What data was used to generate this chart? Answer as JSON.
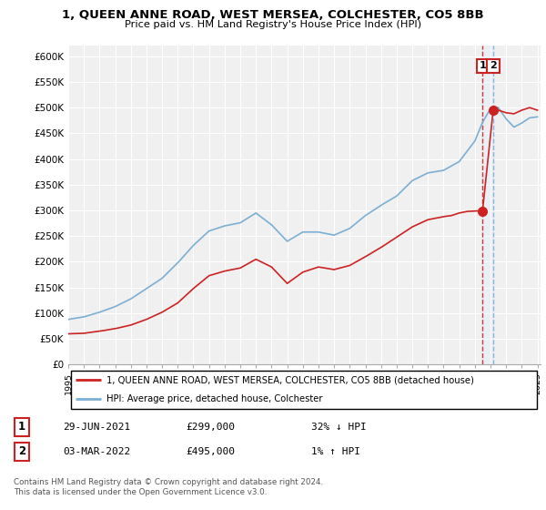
{
  "title": "1, QUEEN ANNE ROAD, WEST MERSEA, COLCHESTER, CO5 8BB",
  "subtitle": "Price paid vs. HM Land Registry's House Price Index (HPI)",
  "xlim_start": 1995.0,
  "xlim_end": 2025.2,
  "ylim_min": 0,
  "ylim_max": 620000,
  "yticks": [
    0,
    50000,
    100000,
    150000,
    200000,
    250000,
    300000,
    350000,
    400000,
    450000,
    500000,
    550000,
    600000
  ],
  "ytick_labels": [
    "£0",
    "£50K",
    "£100K",
    "£150K",
    "£200K",
    "£250K",
    "£300K",
    "£350K",
    "£400K",
    "£450K",
    "£500K",
    "£550K",
    "£600K"
  ],
  "hpi_color": "#7bafd4",
  "price_color": "#cc2222",
  "dashed_red_color": "#cc2222",
  "dashed_blue_color": "#7bafd4",
  "shade_color": "#ddeeff",
  "bg_color": "#f0f0f0",
  "grid_color": "#ffffff",
  "transaction1_x": 2021.49,
  "transaction1_y": 299000,
  "transaction2_x": 2022.17,
  "transaction2_y": 495000,
  "legend_line1": "1, QUEEN ANNE ROAD, WEST MERSEA, COLCHESTER, CO5 8BB (detached house)",
  "legend_line2": "HPI: Average price, detached house, Colchester",
  "table_row1": [
    "1",
    "29-JUN-2021",
    "£299,000",
    "32% ↓ HPI"
  ],
  "table_row2": [
    "2",
    "03-MAR-2022",
    "£495,000",
    "1% ↑ HPI"
  ],
  "copyright": "Contains HM Land Registry data © Crown copyright and database right 2024.\nThis data is licensed under the Open Government Licence v3.0."
}
